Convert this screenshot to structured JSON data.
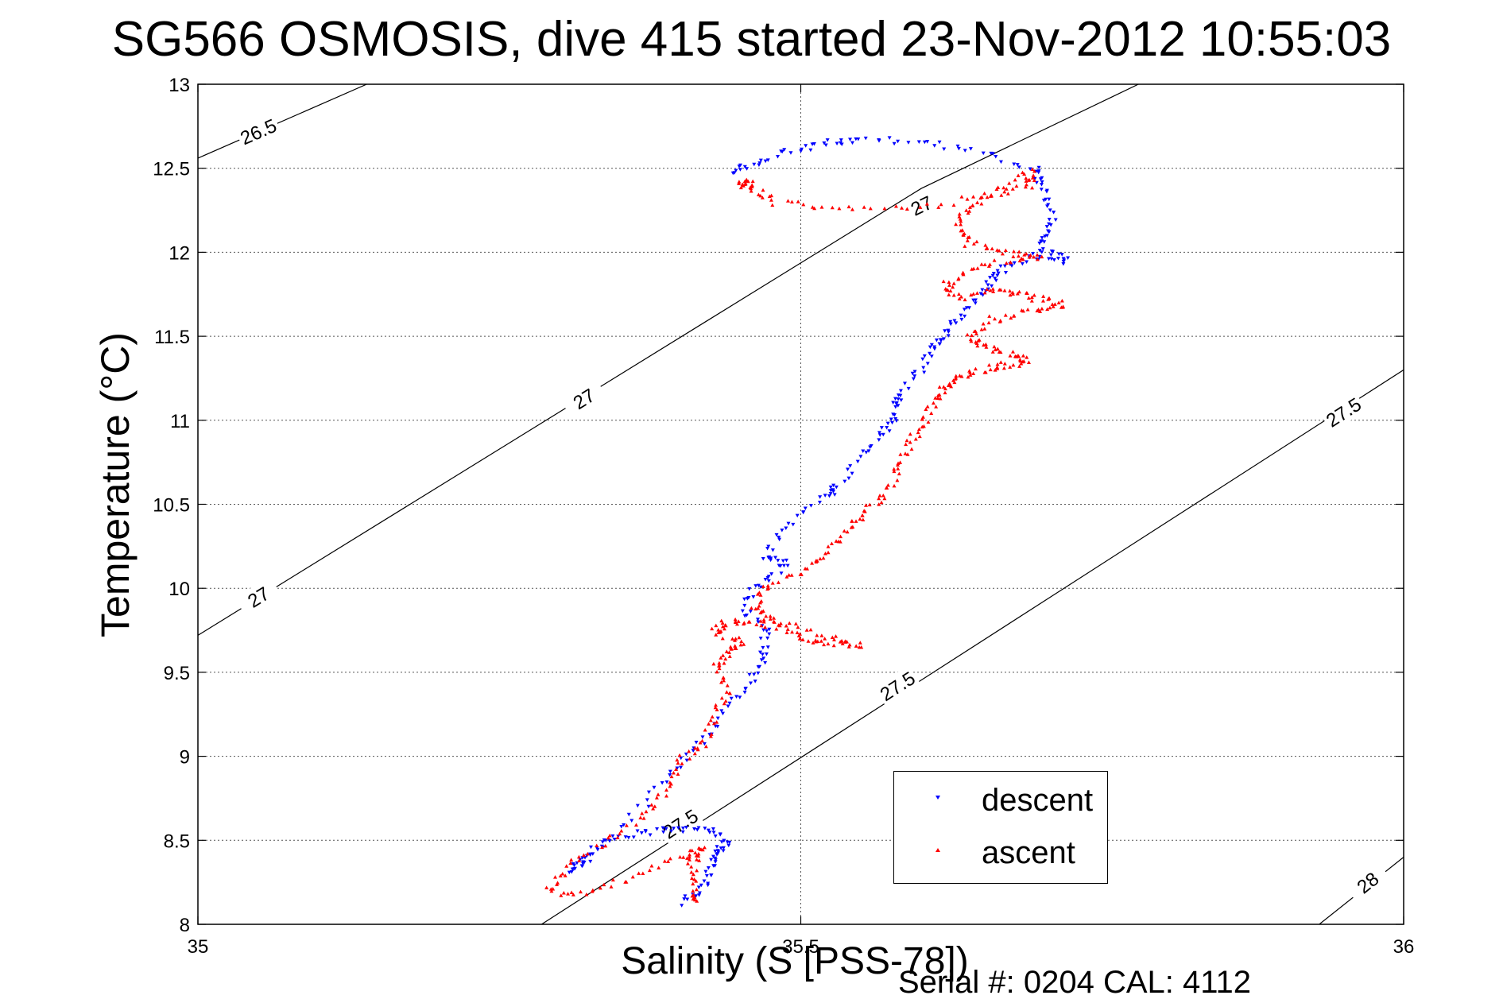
{
  "chart_data": {
    "type": "scatter",
    "title": "SG566 OSMOSIS, dive 415 started 23-Nov-2012 10:55:03",
    "xlabel": "Salinity (S [PSS-78])",
    "ylabel": "Temperature (°C)",
    "footer": "Serial #: 0204  CAL: 4112",
    "xlim": [
      35,
      36
    ],
    "ylim": [
      8,
      13
    ],
    "xticks": [
      35,
      35.5,
      36
    ],
    "xtick_labels": [
      "35",
      "35.5",
      "36"
    ],
    "yticks": [
      8,
      8.5,
      9,
      9.5,
      10,
      10.5,
      11,
      11.5,
      12,
      12.5,
      13
    ],
    "ytick_labels": [
      "8",
      "8.5",
      "9",
      "9.5",
      "10",
      "10.5",
      "11",
      "11.5",
      "12",
      "12.5",
      "13"
    ],
    "grid": true,
    "legend_position": "bottom-right",
    "isopycnals": [
      {
        "label": "26.5",
        "points": [
          [
            35.0,
            12.56
          ],
          [
            35.14,
            13.0
          ]
        ],
        "label_at": [
          [
            35.05,
            12.72
          ]
        ]
      },
      {
        "label": "27",
        "points": [
          [
            35.0,
            9.72
          ],
          [
            35.6,
            12.38
          ],
          [
            35.78,
            13.0
          ]
        ],
        "label_at": [
          [
            35.05,
            9.95
          ],
          [
            35.32,
            11.13
          ],
          [
            35.6,
            12.28
          ]
        ]
      },
      {
        "label": "27.5",
        "points": [
          [
            35.285,
            8.0
          ],
          [
            36.0,
            11.3
          ]
        ],
        "label_at": [
          [
            35.4,
            8.6
          ],
          [
            35.58,
            9.42
          ],
          [
            35.95,
            11.05
          ]
        ]
      },
      {
        "label": "28",
        "points": [
          [
            35.93,
            8.0
          ],
          [
            36.0,
            8.4
          ]
        ],
        "label_at": [
          [
            35.97,
            8.25
          ]
        ]
      }
    ],
    "series": [
      {
        "name": "descent",
        "color": "#0000ff",
        "marker": "triangle-down",
        "polyline": [
          [
            35.4,
            8.12
          ],
          [
            35.42,
            8.22
          ],
          [
            35.425,
            8.35
          ],
          [
            35.43,
            8.44
          ],
          [
            35.44,
            8.48
          ],
          [
            35.425,
            8.56
          ],
          [
            35.4,
            8.56
          ],
          [
            35.37,
            8.55
          ],
          [
            35.34,
            8.5
          ],
          [
            35.32,
            8.4
          ],
          [
            35.31,
            8.3
          ],
          [
            35.33,
            8.44
          ],
          [
            35.37,
            8.72
          ],
          [
            35.4,
            8.95
          ],
          [
            35.42,
            9.1
          ],
          [
            35.44,
            9.3
          ],
          [
            35.46,
            9.45
          ],
          [
            35.47,
            9.6
          ],
          [
            35.47,
            9.75
          ],
          [
            35.45,
            9.9
          ],
          [
            35.47,
            10.05
          ],
          [
            35.49,
            10.15
          ],
          [
            35.47,
            10.2
          ],
          [
            35.49,
            10.38
          ],
          [
            35.52,
            10.55
          ],
          [
            35.53,
            10.6
          ],
          [
            35.55,
            10.8
          ],
          [
            35.57,
            10.95
          ],
          [
            35.58,
            11.05
          ],
          [
            35.58,
            11.15
          ],
          [
            35.6,
            11.3
          ],
          [
            35.61,
            11.45
          ],
          [
            35.62,
            11.5
          ],
          [
            35.63,
            11.62
          ],
          [
            35.65,
            11.75
          ],
          [
            35.66,
            11.85
          ],
          [
            35.67,
            11.92
          ],
          [
            35.695,
            11.98
          ],
          [
            35.72,
            11.95
          ],
          [
            35.7,
            12.02
          ],
          [
            35.705,
            12.12
          ],
          [
            35.71,
            12.25
          ],
          [
            35.7,
            12.4
          ],
          [
            35.695,
            12.5
          ],
          [
            35.65,
            12.6
          ],
          [
            35.6,
            12.66
          ],
          [
            35.55,
            12.67
          ],
          [
            35.52,
            12.65
          ],
          [
            35.49,
            12.6
          ],
          [
            35.46,
            12.52
          ],
          [
            35.44,
            12.47
          ]
        ],
        "spread": 0.004
      },
      {
        "name": "ascent",
        "color": "#ff0000",
        "marker": "triangle-up",
        "polyline": [
          [
            35.41,
            8.12
          ],
          [
            35.41,
            8.25
          ],
          [
            35.41,
            8.38
          ],
          [
            35.42,
            8.45
          ],
          [
            35.4,
            8.4
          ],
          [
            35.36,
            8.28
          ],
          [
            35.32,
            8.18
          ],
          [
            35.29,
            8.2
          ],
          [
            35.31,
            8.35
          ],
          [
            35.34,
            8.5
          ],
          [
            35.37,
            8.65
          ],
          [
            35.39,
            8.82
          ],
          [
            35.4,
            8.98
          ],
          [
            35.42,
            9.08
          ],
          [
            35.43,
            9.25
          ],
          [
            35.44,
            9.4
          ],
          [
            35.43,
            9.55
          ],
          [
            35.44,
            9.62
          ],
          [
            35.45,
            9.68
          ],
          [
            35.43,
            9.75
          ],
          [
            35.44,
            9.8
          ],
          [
            35.46,
            9.8
          ],
          [
            35.48,
            9.78
          ],
          [
            35.5,
            9.7
          ],
          [
            35.52,
            9.68
          ],
          [
            35.55,
            9.66
          ],
          [
            35.52,
            9.72
          ],
          [
            35.48,
            9.8
          ],
          [
            35.46,
            9.88
          ],
          [
            35.47,
            10.0
          ],
          [
            35.5,
            10.1
          ],
          [
            35.52,
            10.2
          ],
          [
            35.54,
            10.35
          ],
          [
            35.55,
            10.45
          ],
          [
            35.57,
            10.55
          ],
          [
            35.58,
            10.7
          ],
          [
            35.59,
            10.85
          ],
          [
            35.6,
            10.98
          ],
          [
            35.61,
            11.1
          ],
          [
            35.62,
            11.2
          ],
          [
            35.63,
            11.25
          ],
          [
            35.65,
            11.3
          ],
          [
            35.67,
            11.33
          ],
          [
            35.69,
            11.35
          ],
          [
            35.67,
            11.4
          ],
          [
            35.65,
            11.45
          ],
          [
            35.64,
            11.5
          ],
          [
            35.66,
            11.6
          ],
          [
            35.69,
            11.65
          ],
          [
            35.72,
            11.68
          ],
          [
            35.7,
            11.72
          ],
          [
            35.68,
            11.75
          ],
          [
            35.66,
            11.78
          ],
          [
            35.63,
            11.72
          ],
          [
            35.62,
            11.8
          ],
          [
            35.64,
            11.9
          ],
          [
            35.67,
            11.95
          ],
          [
            35.7,
            11.97
          ],
          [
            35.67,
            12.0
          ],
          [
            35.64,
            12.05
          ],
          [
            35.63,
            12.15
          ],
          [
            35.64,
            12.28
          ],
          [
            35.66,
            12.35
          ],
          [
            35.69,
            12.4
          ],
          [
            35.69,
            12.48
          ],
          [
            35.66,
            12.35
          ],
          [
            35.6,
            12.26
          ],
          [
            35.53,
            12.25
          ],
          [
            35.48,
            12.3
          ],
          [
            35.46,
            12.38
          ],
          [
            35.45,
            12.42
          ],
          [
            35.46,
            12.4
          ]
        ],
        "spread": 0.004
      }
    ]
  }
}
